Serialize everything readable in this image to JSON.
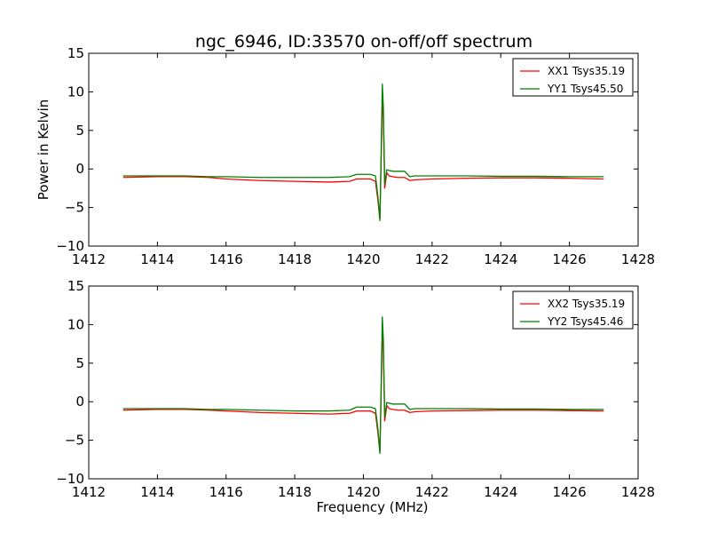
{
  "title": "ngc_6946, ID:33570 on-off/off spectrum",
  "chart_data": [
    {
      "type": "line",
      "xlabel": "",
      "ylabel": "Power in Kelvin",
      "xlim": [
        1412,
        1428
      ],
      "ylim": [
        -10,
        15
      ],
      "xticks": [
        1412,
        1414,
        1416,
        1418,
        1420,
        1422,
        1424,
        1426,
        1428
      ],
      "yticks": [
        -10,
        -5,
        0,
        5,
        10,
        15
      ],
      "legend_position": "top-right",
      "grid": false,
      "series": [
        {
          "name": "XX1 Tsys35.19",
          "color": "#ff0000",
          "x": [
            1413.0,
            1414.0,
            1414.8,
            1415.5,
            1416.0,
            1417.0,
            1418.0,
            1419.0,
            1419.6,
            1419.8,
            1420.2,
            1420.35,
            1420.42,
            1420.48,
            1420.52,
            1420.55,
            1420.58,
            1420.62,
            1420.68,
            1420.75,
            1420.85,
            1421.0,
            1421.2,
            1421.35,
            1421.5,
            1422.0,
            1423.0,
            1424.0,
            1425.0,
            1426.0,
            1427.0
          ],
          "y": [
            -1.1,
            -1.0,
            -1.0,
            -1.1,
            -1.3,
            -1.5,
            -1.6,
            -1.7,
            -1.6,
            -1.3,
            -1.3,
            -1.6,
            -4.0,
            -6.5,
            2.0,
            8.5,
            7.0,
            -2.5,
            -0.5,
            -0.9,
            -1.0,
            -1.1,
            -1.1,
            -1.5,
            -1.4,
            -1.3,
            -1.2,
            -1.15,
            -1.15,
            -1.2,
            -1.3
          ]
        },
        {
          "name": "YY1 Tsys45.50",
          "color": "#008000",
          "x": [
            1413.0,
            1414.0,
            1414.8,
            1415.5,
            1416.0,
            1417.0,
            1418.0,
            1419.0,
            1419.6,
            1419.8,
            1420.2,
            1420.35,
            1420.42,
            1420.48,
            1420.52,
            1420.55,
            1420.58,
            1420.62,
            1420.68,
            1420.75,
            1420.85,
            1421.0,
            1421.2,
            1421.35,
            1421.5,
            1422.0,
            1423.0,
            1424.0,
            1425.0,
            1426.0,
            1427.0
          ],
          "y": [
            -0.9,
            -0.9,
            -0.9,
            -1.0,
            -1.0,
            -1.1,
            -1.1,
            -1.1,
            -1.0,
            -0.7,
            -0.7,
            -0.9,
            -3.5,
            -6.7,
            3.0,
            11.0,
            8.0,
            -2.0,
            -0.1,
            -0.2,
            -0.3,
            -0.3,
            -0.3,
            -1.0,
            -0.9,
            -0.9,
            -0.9,
            -0.95,
            -0.95,
            -1.0,
            -1.0
          ]
        }
      ]
    },
    {
      "type": "line",
      "xlabel": "Frequency (MHz)",
      "ylabel": "",
      "xlim": [
        1412,
        1428
      ],
      "ylim": [
        -10,
        15
      ],
      "xticks": [
        1412,
        1414,
        1416,
        1418,
        1420,
        1422,
        1424,
        1426,
        1428
      ],
      "yticks": [
        -10,
        -5,
        0,
        5,
        10,
        15
      ],
      "legend_position": "top-right",
      "grid": false,
      "series": [
        {
          "name": "XX2 Tsys35.19",
          "color": "#ff0000",
          "x": [
            1413.0,
            1414.0,
            1414.8,
            1415.5,
            1416.0,
            1417.0,
            1418.0,
            1419.0,
            1419.6,
            1419.8,
            1420.2,
            1420.35,
            1420.42,
            1420.48,
            1420.52,
            1420.55,
            1420.58,
            1420.62,
            1420.68,
            1420.75,
            1420.85,
            1421.0,
            1421.2,
            1421.35,
            1421.5,
            1422.0,
            1423.0,
            1424.0,
            1425.0,
            1426.0,
            1427.0
          ],
          "y": [
            -1.1,
            -1.0,
            -1.0,
            -1.1,
            -1.2,
            -1.4,
            -1.5,
            -1.6,
            -1.5,
            -1.2,
            -1.2,
            -1.5,
            -4.0,
            -6.5,
            2.0,
            8.5,
            7.0,
            -2.5,
            -0.5,
            -0.9,
            -1.0,
            -1.1,
            -1.1,
            -1.4,
            -1.3,
            -1.2,
            -1.15,
            -1.1,
            -1.1,
            -1.15,
            -1.2
          ]
        },
        {
          "name": "YY2 Tsys45.46",
          "color": "#008000",
          "x": [
            1413.0,
            1414.0,
            1414.8,
            1415.5,
            1416.0,
            1417.0,
            1418.0,
            1419.0,
            1419.6,
            1419.8,
            1420.2,
            1420.35,
            1420.42,
            1420.48,
            1420.52,
            1420.55,
            1420.58,
            1420.62,
            1420.68,
            1420.75,
            1420.85,
            1421.0,
            1421.2,
            1421.35,
            1421.5,
            1422.0,
            1423.0,
            1424.0,
            1425.0,
            1426.0,
            1427.0
          ],
          "y": [
            -0.9,
            -0.9,
            -0.9,
            -1.0,
            -1.0,
            -1.1,
            -1.2,
            -1.2,
            -1.1,
            -0.7,
            -0.7,
            -0.9,
            -3.5,
            -6.7,
            3.0,
            11.0,
            8.0,
            -2.0,
            -0.1,
            -0.2,
            -0.3,
            -0.3,
            -0.3,
            -1.0,
            -0.9,
            -0.9,
            -0.9,
            -0.95,
            -0.95,
            -1.0,
            -1.0
          ]
        }
      ]
    }
  ]
}
